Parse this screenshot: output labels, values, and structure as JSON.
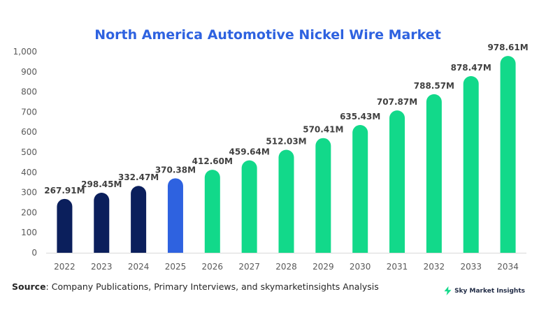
{
  "colors": {
    "title": "#2e62e0",
    "historical": "#0b1f5c",
    "current": "#2e62e0",
    "forecast": "#12d98a",
    "axis": "#d9d9d9"
  },
  "chart_data": {
    "type": "bar",
    "title": "North America Automotive Nickel Wire Market",
    "xlabel": "",
    "ylabel": "",
    "ylim": [
      0,
      1000
    ],
    "yticks": [
      0,
      100,
      200,
      300,
      400,
      500,
      600,
      700,
      800,
      900,
      1000
    ],
    "ytick_labels": [
      "0",
      "100",
      "200",
      "300",
      "400",
      "500",
      "600",
      "700",
      "800",
      "900",
      "1,000"
    ],
    "grid": false,
    "legend": "none",
    "categories": [
      "2022",
      "2023",
      "2024",
      "2025",
      "2026",
      "2027",
      "2028",
      "2029",
      "2030",
      "2031",
      "2032",
      "2033",
      "2034"
    ],
    "values": [
      267.91,
      298.45,
      332.47,
      370.38,
      412.6,
      459.64,
      512.03,
      570.41,
      635.43,
      707.87,
      788.57,
      878.47,
      978.61
    ],
    "data_labels": [
      "267.91M",
      "298.45M",
      "332.47M",
      "370.38M",
      "412.60M",
      "459.64M",
      "512.03M",
      "570.41M",
      "635.43M",
      "707.87M",
      "788.57M",
      "878.47M",
      "978.61M"
    ],
    "bar_colors": [
      "historical",
      "historical",
      "historical",
      "current",
      "forecast",
      "forecast",
      "forecast",
      "forecast",
      "forecast",
      "forecast",
      "forecast",
      "forecast",
      "forecast"
    ]
  },
  "footer": {
    "source_label": "Source",
    "source_text": ": Company Publications, Primary Interviews, and skymarketinsights Analysis",
    "brand_icon": "lightning-bolt-icon",
    "brand_name": "Sky Market Insights"
  }
}
